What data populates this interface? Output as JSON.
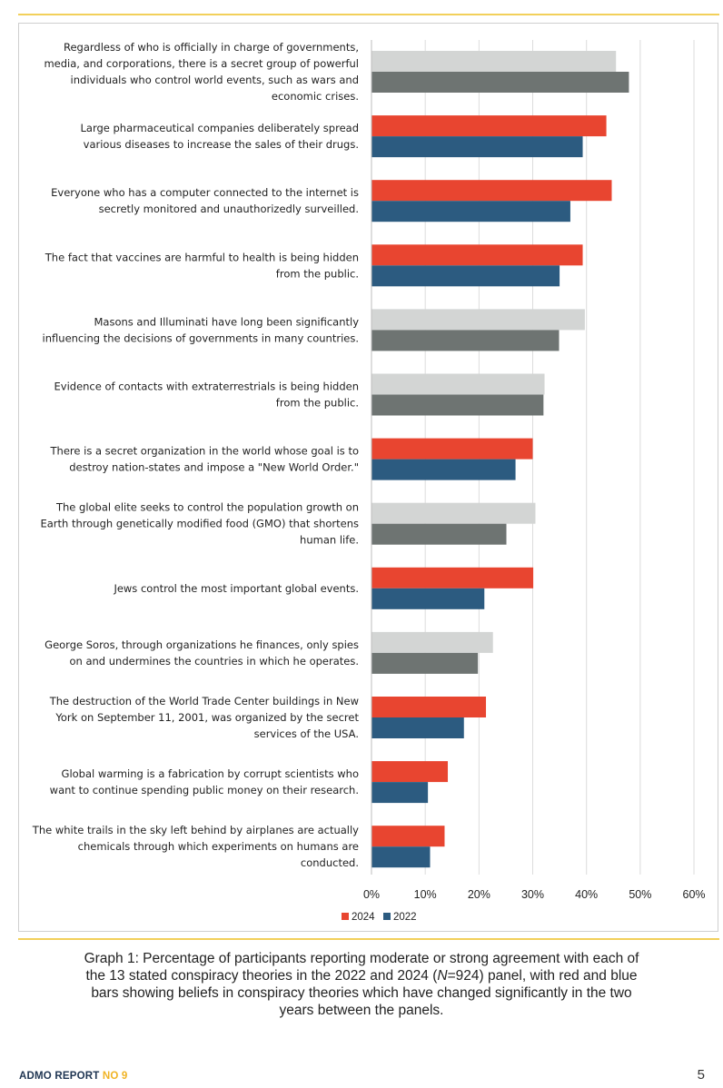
{
  "chart_data": {
    "type": "bar",
    "orientation": "horizontal",
    "categories": [
      [
        "Regardless of who is officially in charge of governments,",
        "media, and corporations, there is a secret group of powerful",
        "individuals who control world events, such as wars and",
        "economic crises."
      ],
      [
        "Large pharmaceutical companies deliberately spread",
        "various diseases to increase the sales of their drugs."
      ],
      [
        "Everyone who has a computer connected to the internet is",
        "secretly monitored and unauthorizedly surveilled."
      ],
      [
        "The fact that vaccines are harmful to health is being hidden",
        "from the public."
      ],
      [
        "Masons and Illuminati have long been significantly",
        "influencing the decisions of governments in many countries."
      ],
      [
        "Evidence of contacts with extraterrestrials is being hidden",
        "from the public."
      ],
      [
        "There is a secret organization in the world whose goal is to",
        "destroy nation-states and impose a \"New World Order.\""
      ],
      [
        "The global elite seeks to control the population growth on",
        "Earth through genetically modified food (GMO) that shortens",
        "human life."
      ],
      [
        "Jews control the most important global events."
      ],
      [
        "George Soros, through organizations he finances, only spies",
        "on and undermines the countries in which he operates."
      ],
      [
        "The destruction of the World Trade Center buildings in New",
        "York on September 11, 2001, was organized by the secret",
        "services of the USA."
      ],
      [
        "Global warming is a fabrication by corrupt scientists who",
        "want to continue spending public money on their research."
      ],
      [
        "The white trails in the sky left behind by airplanes are actually",
        "chemicals through which experiments on humans are",
        "conducted."
      ]
    ],
    "series": [
      {
        "name": "2024",
        "values": [
          45.5,
          43.7,
          44.7,
          39.3,
          39.7,
          32.2,
          30.0,
          30.5,
          30.1,
          22.6,
          21.3,
          14.2,
          13.6
        ]
      },
      {
        "name": "2022",
        "values": [
          47.9,
          39.3,
          37.0,
          35.0,
          34.9,
          32.0,
          26.8,
          25.1,
          21.0,
          19.8,
          17.2,
          10.5,
          10.9
        ]
      }
    ],
    "significant_change": [
      false,
      true,
      true,
      true,
      false,
      false,
      true,
      false,
      true,
      false,
      true,
      true,
      true
    ],
    "xlim": [
      0,
      60
    ],
    "xticks": [
      "0%",
      "10%",
      "20%",
      "30%",
      "40%",
      "50%",
      "60%"
    ],
    "grid": true,
    "legend_position": "bottom",
    "colors": {
      "2024_significant": "#e84530",
      "2022_significant": "#2c5b80",
      "2024_not_significant": "#d3d5d4",
      "2022_not_significant": "#6e7472",
      "grid": "#dcdcdc"
    }
  },
  "caption": {
    "before_n": "Graph 1: Percentage of participants reporting moderate or strong agreement with each of the 13 stated conspiracy theories in the 2022 and 2024 (",
    "n_symbol": "N",
    "after_n": "=924) panel, with red and blue bars showing beliefs in conspiracy theories which have changed significantly in the two years between the panels."
  },
  "footer": {
    "brand": "ADMO REPORT",
    "issue": "NO 9",
    "page": "5"
  }
}
